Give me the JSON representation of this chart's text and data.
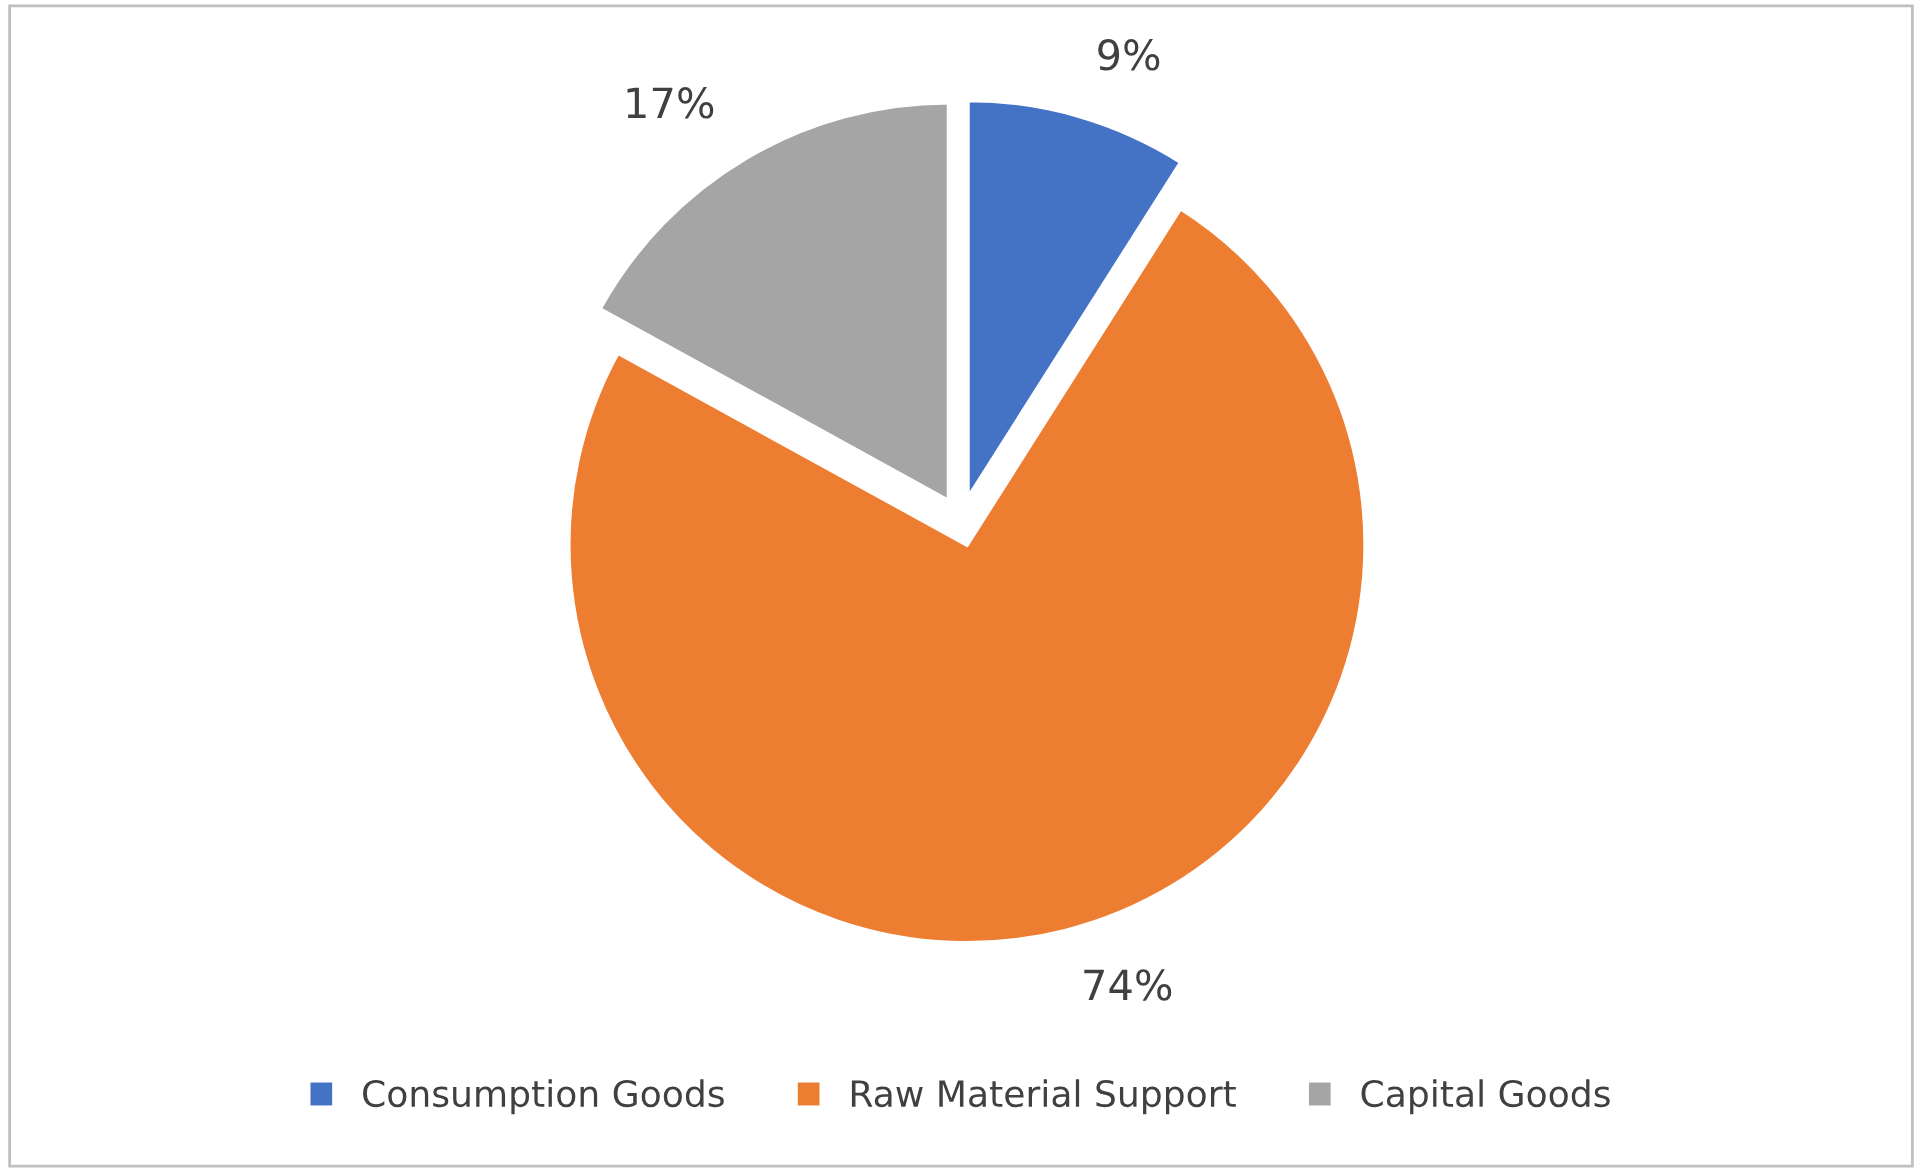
{
  "chart_data": {
    "type": "pie",
    "categories": [
      "Consumption Goods",
      "Raw Material Support",
      "Capital Goods"
    ],
    "values": [
      9,
      74,
      17
    ],
    "colors": [
      "#4472c4",
      "#ed7d31",
      "#a5a5a5"
    ],
    "value_labels": [
      "9%",
      "74%",
      "17%"
    ],
    "legend": "bottom"
  }
}
